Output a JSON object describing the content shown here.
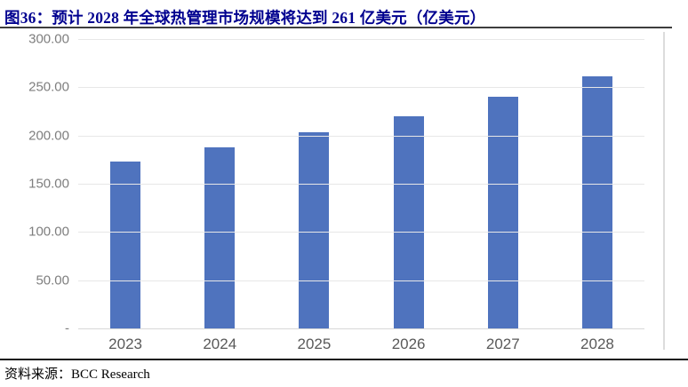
{
  "figure": {
    "title": "图36：预计 2028 年全球热管理市场规模将达到 261 亿美元（亿美元）"
  },
  "footer": {
    "source_label": "资料来源：",
    "source_value": "BCC Research"
  },
  "colors": {
    "title_text": "#00008f",
    "bar": "#4f73be",
    "gridline": "#e7e7e7",
    "axis_baseline": "#d8d8d8",
    "y_tick_text": "#7e7e7e",
    "x_tick_text": "#595959",
    "title_rule": "#3d3d3d",
    "footer_rule": "#161616"
  },
  "chart_data": {
    "type": "bar",
    "title": "预计 2028 年全球热管理市场规模将达到 261 亿美元",
    "unit": "亿美元",
    "categories": [
      "2023",
      "2024",
      "2025",
      "2026",
      "2027",
      "2028"
    ],
    "values": [
      173,
      188,
      203,
      220,
      240,
      261
    ],
    "xlabel": "",
    "ylabel": "",
    "ylim": [
      0,
      300
    ],
    "y_ticks": [
      "300.00",
      "250.00",
      "200.00",
      "150.00",
      "100.00",
      "50.00",
      "-"
    ],
    "y_tick_values": [
      300,
      250,
      200,
      150,
      100,
      50,
      0
    ],
    "grid": true,
    "legend": false,
    "bar_color": "#4f73be"
  }
}
